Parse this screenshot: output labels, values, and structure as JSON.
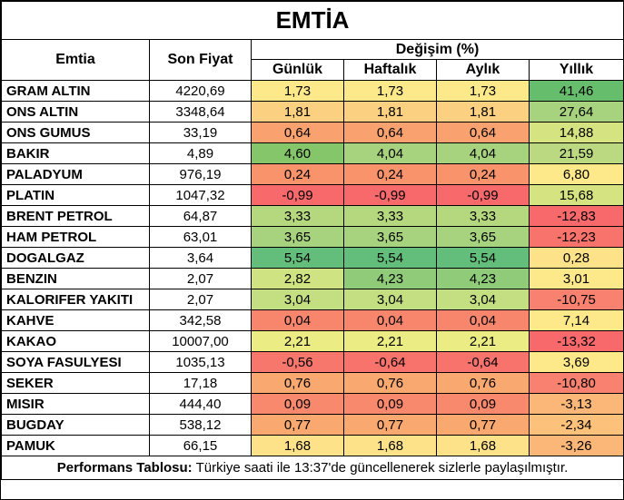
{
  "title": "EMTİA",
  "headers": {
    "commodity": "Emtia",
    "last_price": "Son Fiyat",
    "change_group": "Değişim (%)",
    "daily": "Günlük",
    "weekly": "Haftalık",
    "monthly": "Aylık",
    "yearly": "Yıllık"
  },
  "rows": [
    {
      "name": "GRAM ALTIN",
      "price": "4220,69",
      "d": "1,73",
      "w": "1,73",
      "m": "1,73",
      "y": "41,46",
      "dc": "#fde98a",
      "wc": "#fde98a",
      "mc": "#fde98a",
      "yc": "#66bd6b"
    },
    {
      "name": "ONS ALTIN",
      "price": "3348,64",
      "d": "1,81",
      "w": "1,81",
      "m": "1,81",
      "y": "27,64",
      "dc": "#fbd080",
      "wc": "#fbd080",
      "mc": "#fbd080",
      "yc": "#a7d37f"
    },
    {
      "name": "ONS GUMUS",
      "price": "33,19",
      "d": "0,64",
      "w": "0,64",
      "m": "0,64",
      "y": "14,88",
      "dc": "#f9a270",
      "wc": "#f9a270",
      "mc": "#f9a270",
      "yc": "#d6e381"
    },
    {
      "name": "BAKIR",
      "price": "4,89",
      "d": "4,60",
      "w": "4,04",
      "m": "4,04",
      "y": "21,59",
      "dc": "#86c66b",
      "wc": "#a7d37f",
      "mc": "#a7d37f",
      "yc": "#bad981"
    },
    {
      "name": "PALADYUM",
      "price": "976,19",
      "d": "0,24",
      "w": "0,24",
      "m": "0,24",
      "y": "6,80",
      "dc": "#f8936c",
      "wc": "#f8936c",
      "mc": "#f8936c",
      "yc": "#fde98a"
    },
    {
      "name": "PLATIN",
      "price": "1047,32",
      "d": "-0,99",
      "w": "-0,99",
      "m": "-0,99",
      "y": "15,68",
      "dc": "#f8696b",
      "wc": "#f8696b",
      "mc": "#f8696b",
      "yc": "#d6e381"
    },
    {
      "name": "BRENT PETROL",
      "price": "64,87",
      "d": "3,33",
      "w": "3,33",
      "m": "3,33",
      "y": "-12,83",
      "dc": "#b5d87f",
      "wc": "#b5d87f",
      "mc": "#b5d87f",
      "yc": "#f8696b"
    },
    {
      "name": "HAM PETROL",
      "price": "63,01",
      "d": "3,65",
      "w": "3,65",
      "m": "3,65",
      "y": "-12,23",
      "dc": "#a7d37f",
      "wc": "#a7d37f",
      "mc": "#a7d37f",
      "yc": "#f8736c"
    },
    {
      "name": "DOGALGAZ",
      "price": "3,64",
      "d": "5,54",
      "w": "5,54",
      "m": "5,54",
      "y": "0,28",
      "dc": "#63be7b",
      "wc": "#63be7b",
      "mc": "#63be7b",
      "yc": "#fde28a"
    },
    {
      "name": "BENZIN",
      "price": "2,07",
      "d": "2,82",
      "w": "4,23",
      "m": "4,23",
      "y": "3,01",
      "dc": "#d0e383",
      "wc": "#8fcb79",
      "mc": "#8fcb79",
      "yc": "#fde98a"
    },
    {
      "name": "KALORIFER YAKITI",
      "price": "2,07",
      "d": "3,04",
      "w": "3,04",
      "m": "3,04",
      "y": "-10,75",
      "dc": "#c4df82",
      "wc": "#c4df82",
      "mc": "#c4df82",
      "yc": "#f8826f"
    },
    {
      "name": "KAHVE",
      "price": "342,58",
      "d": "0,04",
      "w": "0,04",
      "m": "0,04",
      "y": "7,14",
      "dc": "#f8866c",
      "wc": "#f8866c",
      "mc": "#f8866c",
      "yc": "#fde98a"
    },
    {
      "name": "KAKAO",
      "price": "10007,00",
      "d": "2,21",
      "w": "2,21",
      "m": "2,21",
      "y": "-13,32",
      "dc": "#ecec84",
      "wc": "#ecec84",
      "mc": "#ecec84",
      "yc": "#f8696b"
    },
    {
      "name": "SOYA FASULYESI",
      "price": "1035,13",
      "d": "-0,56",
      "w": "-0,64",
      "m": "-0,64",
      "y": "3,69",
      "dc": "#f8776d",
      "wc": "#f8736c",
      "mc": "#f8736c",
      "yc": "#fde98a"
    },
    {
      "name": "SEKER",
      "price": "17,18",
      "d": "0,76",
      "w": "0,76",
      "m": "0,76",
      "y": "-10,80",
      "dc": "#f9a870",
      "wc": "#f9a870",
      "mc": "#f9a870",
      "yc": "#f8826f"
    },
    {
      "name": "MISIR",
      "price": "444,40",
      "d": "0,09",
      "w": "0,09",
      "m": "0,09",
      "y": "-3,13",
      "dc": "#f8896c",
      "wc": "#f8896c",
      "mc": "#f8896c",
      "yc": "#fbb778"
    },
    {
      "name": "BUGDAY",
      "price": "538,12",
      "d": "0,77",
      "w": "0,77",
      "m": "0,77",
      "y": "-2,34",
      "dc": "#f9a870",
      "wc": "#f9a870",
      "mc": "#f9a870",
      "yc": "#fcc17b"
    },
    {
      "name": "PAMUK",
      "price": "66,15",
      "d": "1,68",
      "w": "1,68",
      "m": "1,68",
      "y": "-3,26",
      "dc": "#fde28a",
      "wc": "#fde28a",
      "mc": "#fde28a",
      "yc": "#fbb778"
    }
  ],
  "footer": {
    "label": "Performans Tablosu:",
    "text": " Türkiye saati ile 13:37'de güncellenerek sizlerle paylaşılmıştır."
  }
}
